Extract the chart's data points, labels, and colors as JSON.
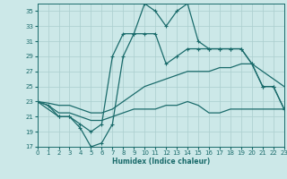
{
  "xlabel": "Humidex (Indice chaleur)",
  "background_color": "#cce8e8",
  "grid_color": "#aacece",
  "line_color": "#1a6b6b",
  "ylim": [
    17,
    36
  ],
  "xlim": [
    0,
    23
  ],
  "yticks": [
    17,
    19,
    21,
    23,
    25,
    27,
    29,
    31,
    33,
    35
  ],
  "xticks": [
    0,
    1,
    2,
    3,
    4,
    5,
    6,
    7,
    8,
    9,
    10,
    11,
    12,
    13,
    14,
    15,
    16,
    17,
    18,
    19,
    20,
    21,
    22,
    23
  ],
  "line1_x": [
    0,
    1,
    2,
    3,
    4,
    5,
    6,
    7,
    8,
    9,
    10,
    11,
    12,
    13,
    14,
    15,
    16,
    17,
    18,
    19,
    20,
    21,
    22,
    23
  ],
  "line1_y": [
    23,
    22.5,
    21,
    21,
    19.5,
    17,
    17.5,
    20,
    29,
    32,
    36,
    35,
    33,
    35,
    36,
    31,
    30,
    30,
    30,
    30,
    28,
    25,
    25,
    22
  ],
  "line2_x": [
    0,
    2,
    3,
    4,
    5,
    6,
    7,
    8,
    9,
    10,
    11,
    12,
    13,
    14,
    15,
    16,
    17,
    18,
    19,
    20,
    21,
    22,
    23
  ],
  "line2_y": [
    23,
    21,
    21,
    20,
    19,
    20,
    29,
    32,
    32,
    32,
    32,
    28,
    29,
    30,
    30,
    30,
    30,
    30,
    30,
    28,
    25,
    25,
    22
  ],
  "line3_x": [
    0,
    1,
    2,
    3,
    4,
    5,
    6,
    7,
    8,
    9,
    10,
    11,
    12,
    13,
    14,
    15,
    16,
    17,
    18,
    19,
    20,
    21,
    22,
    23
  ],
  "line3_y": [
    23,
    22.8,
    22.5,
    22.5,
    22,
    21.5,
    21.5,
    22,
    23,
    24,
    25,
    25.5,
    26,
    26.5,
    27,
    27,
    27,
    27.5,
    27.5,
    28,
    28,
    27,
    26,
    25
  ],
  "line4_x": [
    0,
    1,
    2,
    3,
    4,
    5,
    6,
    7,
    8,
    9,
    10,
    11,
    12,
    13,
    14,
    15,
    16,
    17,
    18,
    19,
    20,
    21,
    22,
    23
  ],
  "line4_y": [
    23,
    22.5,
    21.5,
    21.5,
    21,
    20.5,
    20.5,
    21,
    21.5,
    22,
    22,
    22,
    22.5,
    22.5,
    23,
    22.5,
    21.5,
    21.5,
    22,
    22,
    22,
    22,
    22,
    22
  ]
}
